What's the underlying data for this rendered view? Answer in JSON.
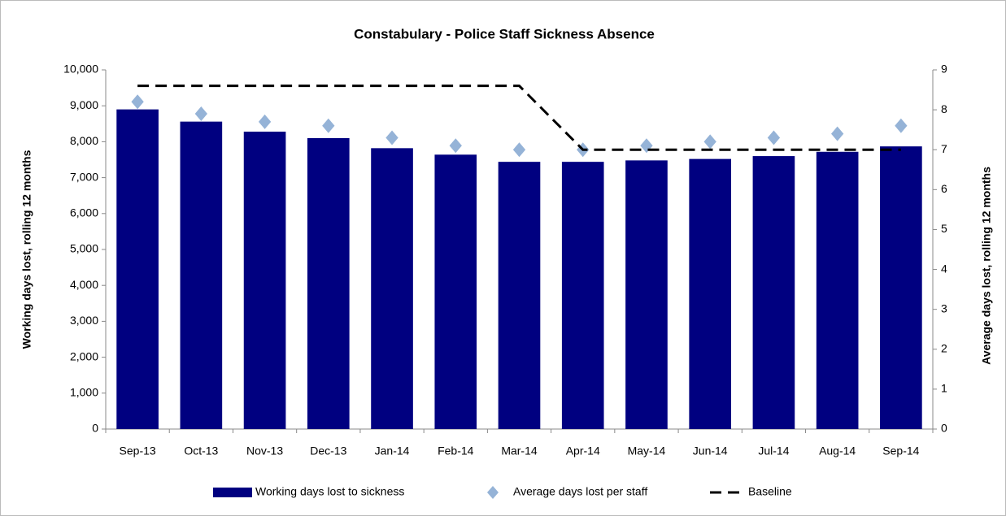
{
  "chart_data": {
    "type": "bar",
    "title": "Constabulary - Police Staff Sickness Absence",
    "y_label": "Working days  lost, rolling 12 months",
    "y2_label": "Average days  lost, rolling 12 months",
    "categories": [
      "Sep-13",
      "Oct-13",
      "Nov-13",
      "Dec-13",
      "Jan-14",
      "Feb-14",
      "Mar-14",
      "Apr-14",
      "May-14",
      "Jun-14",
      "Jul-14",
      "Aug-14",
      "Sep-14"
    ],
    "series": [
      {
        "name": "Working days lost to sickness",
        "type": "bar",
        "color": "#000080",
        "values": [
          8900,
          8560,
          8280,
          8100,
          7820,
          7640,
          7440,
          7440,
          7480,
          7520,
          7600,
          7720,
          7870
        ]
      },
      {
        "name": "Average days lost per staff",
        "type": "scatter",
        "axis": "y2",
        "color": "#95b3d7",
        "values": [
          8.2,
          7.9,
          7.7,
          7.6,
          7.3,
          7.1,
          7.0,
          7.0,
          7.1,
          7.2,
          7.3,
          7.4,
          7.6
        ]
      },
      {
        "name": "Baseline",
        "type": "line",
        "axis": "y2",
        "dashed": true,
        "color": "#000000",
        "values": [
          8.6,
          8.6,
          8.6,
          8.6,
          8.6,
          8.6,
          8.6,
          7.0,
          7.0,
          7.0,
          7.0,
          7.0,
          7.0
        ]
      }
    ],
    "ylim": [
      0,
      10000
    ],
    "yticks": [
      0,
      {
        "value": 1000,
        "label": "1,000"
      },
      {
        "value": 2000,
        "label": "2,000"
      },
      {
        "value": 3000,
        "label": "3,000"
      },
      {
        "value": 4000,
        "label": "4,000"
      },
      {
        "value": 5000,
        "label": "5,000"
      },
      {
        "value": 6000,
        "label": "6,000"
      },
      {
        "value": 7000,
        "label": "7,000"
      },
      {
        "value": 8000,
        "label": "8,000"
      },
      {
        "value": 9000,
        "label": "9,000"
      },
      {
        "value": 10000,
        "label": "10,000"
      }
    ],
    "y2lim": [
      0,
      9
    ],
    "y2ticks": [
      0,
      1,
      2,
      3,
      4,
      5,
      6,
      7,
      8,
      9
    ],
    "legend": "bottom"
  }
}
